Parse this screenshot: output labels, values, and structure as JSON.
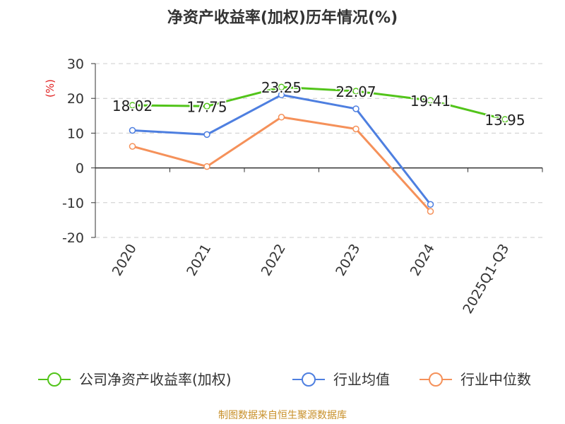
{
  "chart_data": {
    "type": "line",
    "title": "净资产收益率(加权)历年情况(%)",
    "ylabel": "(%)",
    "categories": [
      "2020",
      "2021",
      "2022",
      "2023",
      "2024",
      "2025Q1-Q3"
    ],
    "ylim": [
      -20,
      30
    ],
    "yticks": [
      30,
      20,
      10,
      0,
      -10,
      -20
    ],
    "ytick_labels": [
      "30",
      "20",
      "10",
      "0",
      "-10",
      "-20"
    ],
    "grid": true,
    "legend_position": "bottom",
    "series": [
      {
        "name": "公司净资产收益率(加权)",
        "color": "#52c41a",
        "values": [
          18.02,
          17.75,
          23.25,
          22.07,
          19.41,
          13.95
        ],
        "labels": [
          "18.02",
          "17.75",
          "23.25",
          "22.07",
          "19.41",
          "13.95"
        ]
      },
      {
        "name": "行业均值",
        "color": "#4e7fe0",
        "values": [
          10.8,
          9.6,
          21.0,
          17.0,
          -10.5,
          null
        ]
      },
      {
        "name": "行业中位数",
        "color": "#f5915a",
        "values": [
          6.2,
          0.4,
          14.6,
          11.2,
          -12.5,
          null
        ]
      }
    ],
    "source": "制图数据来自恒生聚源数据库"
  },
  "colors": {
    "title": "#333333",
    "ylabel": "#e02020",
    "source": "#c8902a",
    "axis": "#333333",
    "grid": "#cccccc"
  }
}
